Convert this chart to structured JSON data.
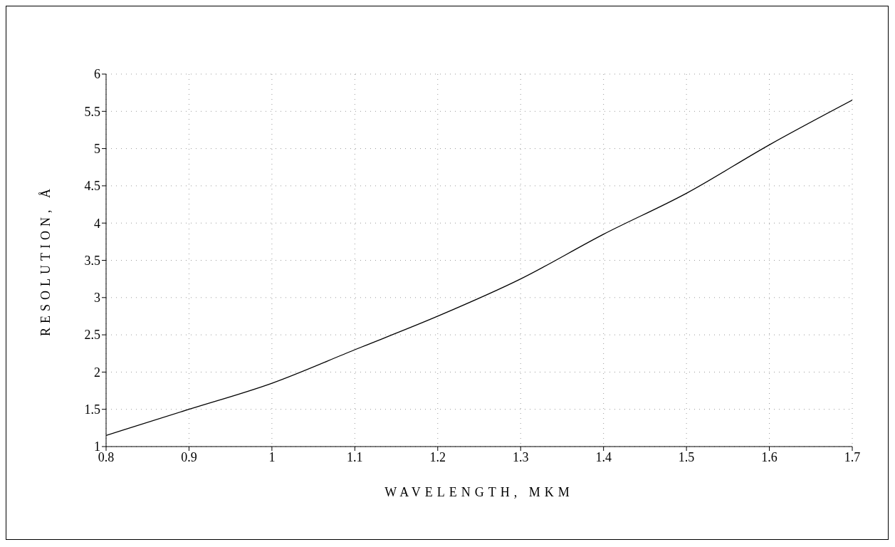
{
  "chart_data": {
    "type": "line",
    "xlabel": "WAVELENGTH, MKM",
    "ylabel": "RESOLUTION, Å",
    "x": [
      0.8,
      0.9,
      1.0,
      1.1,
      1.2,
      1.3,
      1.4,
      1.5,
      1.6,
      1.7
    ],
    "series": [
      {
        "color": "#000000",
        "values": [
          1.15,
          1.5,
          1.85,
          2.3,
          2.75,
          3.25,
          3.85,
          4.4,
          5.05,
          5.65
        ]
      }
    ],
    "xlim": [
      0.8,
      1.7
    ],
    "xticks": [
      0.8,
      0.9,
      1,
      1.1,
      1.2,
      1.3,
      1.4,
      1.5,
      1.6,
      1.7
    ],
    "ylim": [
      1,
      6
    ],
    "yticks": [
      1,
      1.5,
      2,
      2.5,
      3,
      3.5,
      4,
      4.5,
      5,
      5.5,
      6
    ],
    "grid": true,
    "marker": "none",
    "line_style": "solid",
    "legend": false
  }
}
